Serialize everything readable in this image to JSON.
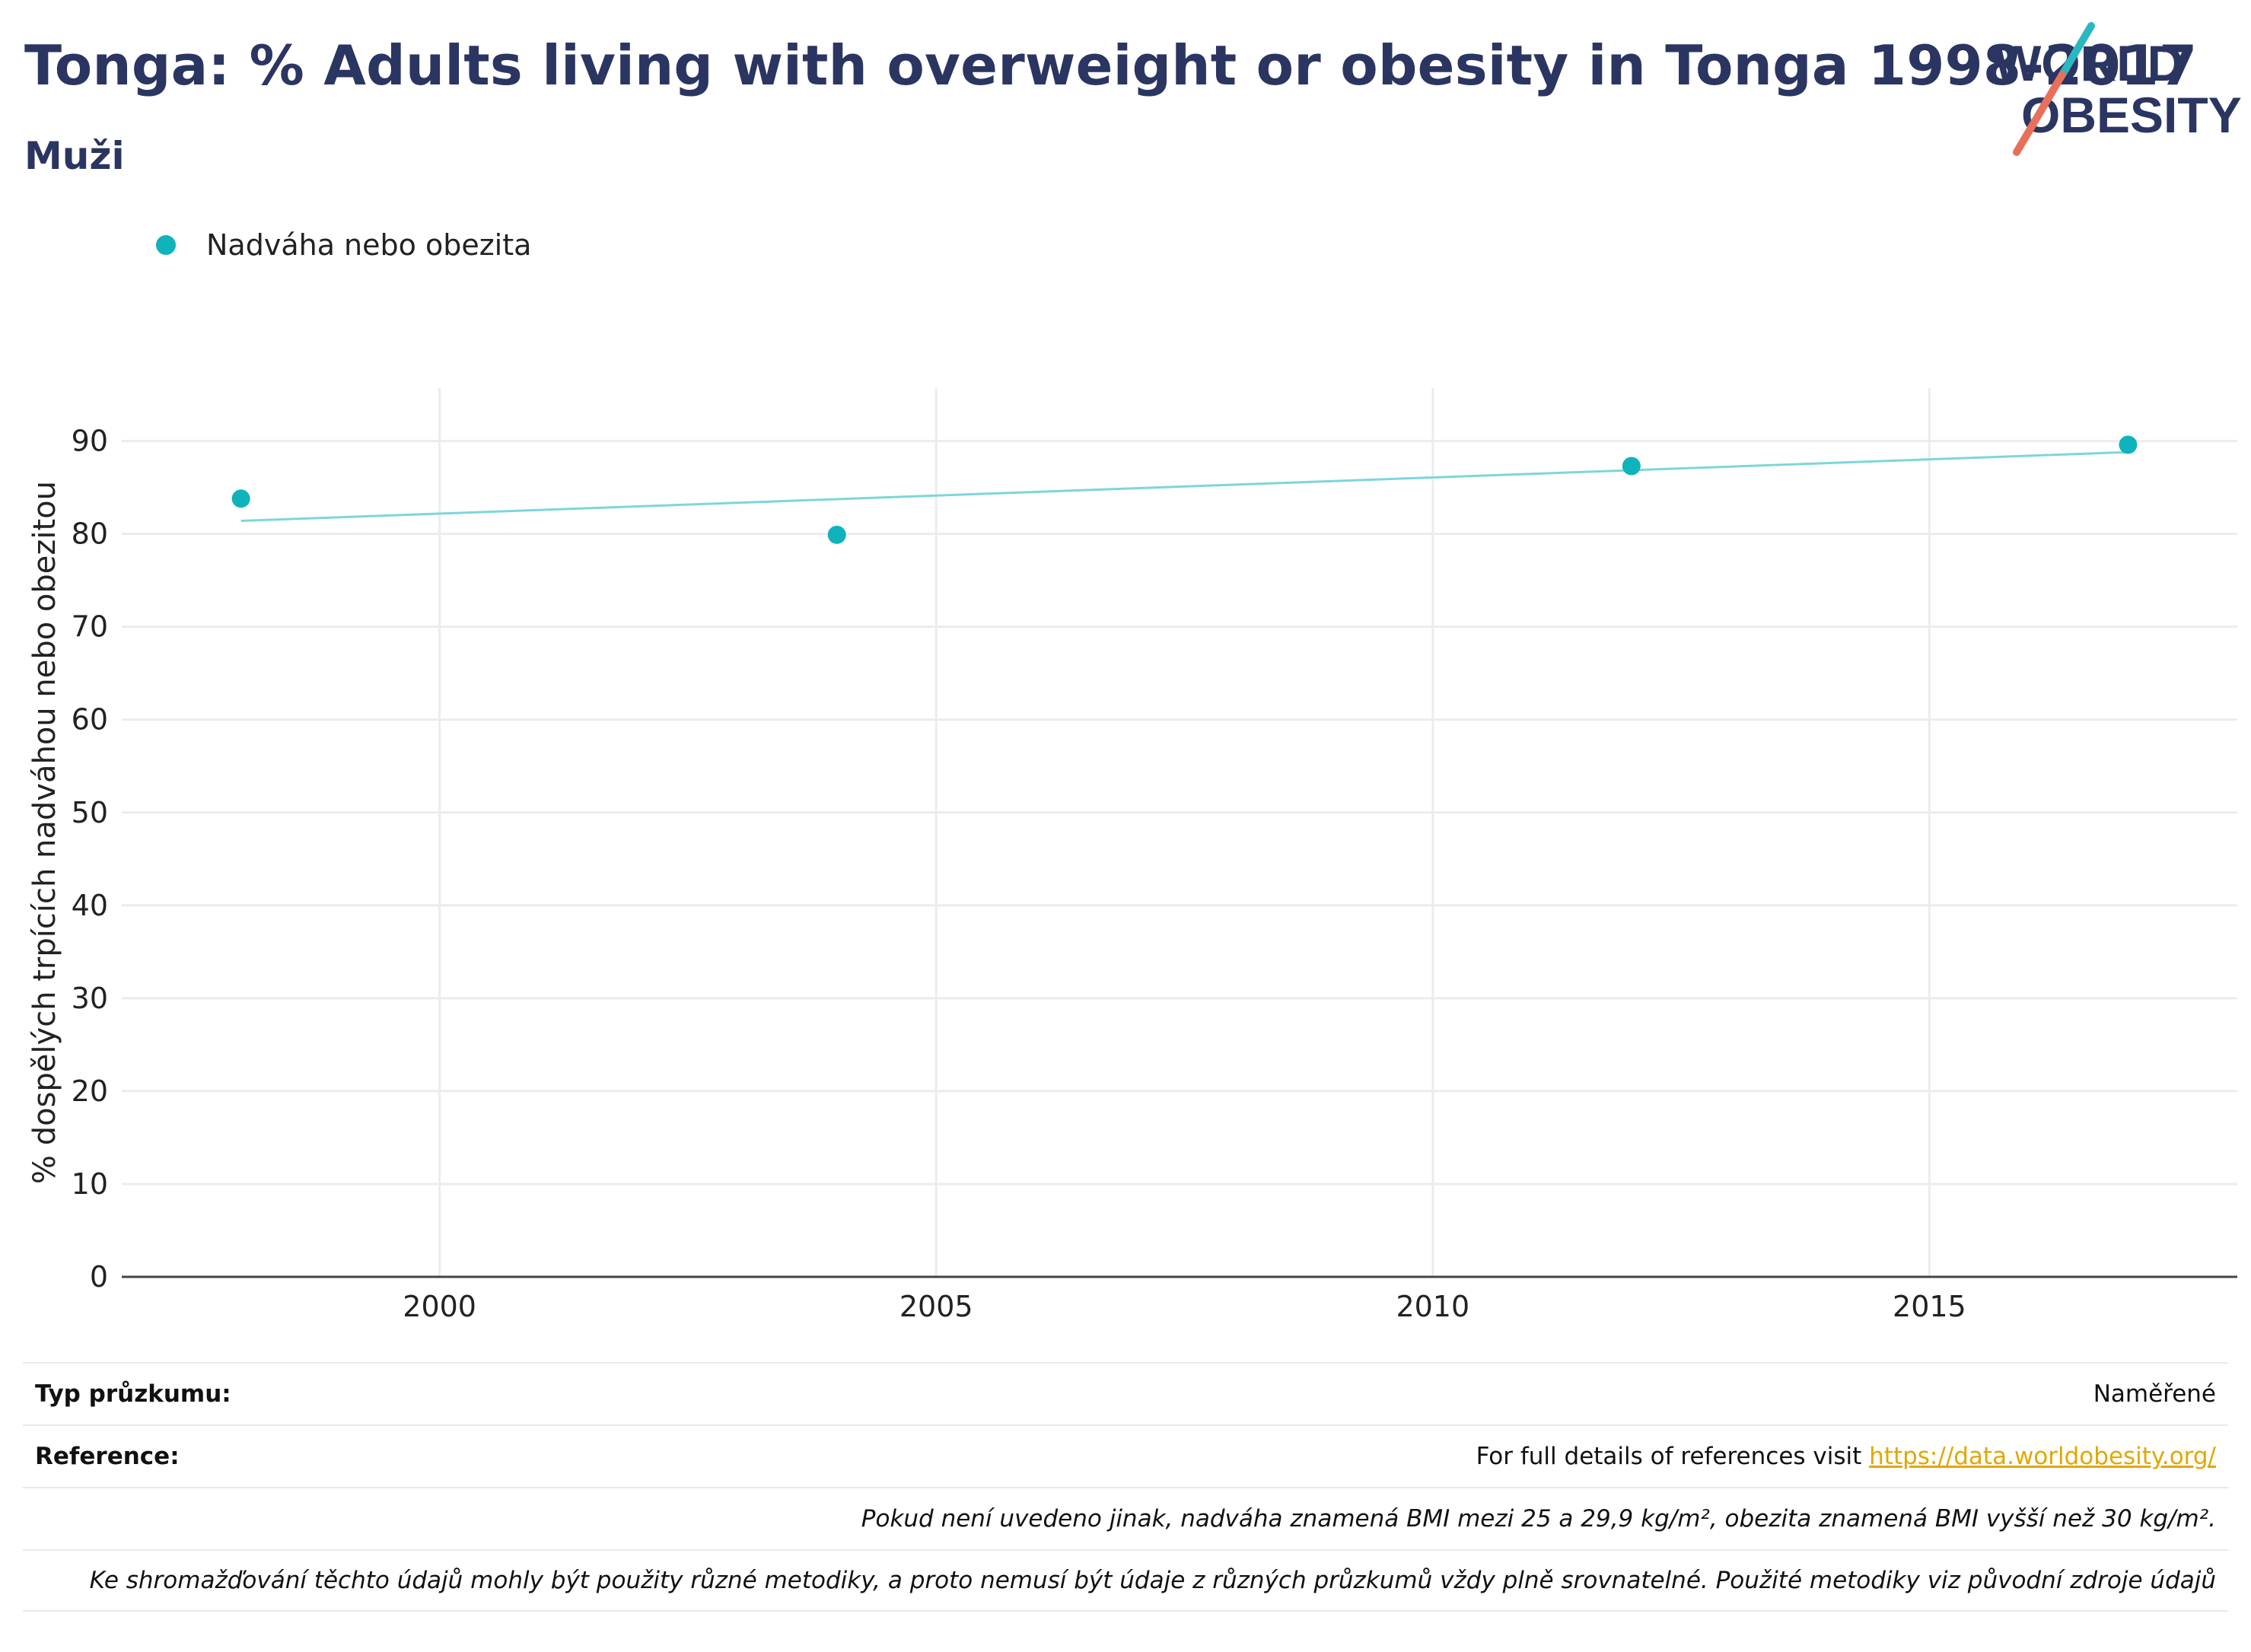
{
  "header": {
    "title": "Tonga: % Adults living with overweight or obesity in Tonga 1998-2017",
    "subtitle": "Muži",
    "logo_text_top": "WORLD",
    "logo_text_bottom": "OBESITY"
  },
  "legend": {
    "label": "Nadváha nebo obezita"
  },
  "chart_data": {
    "type": "scatter",
    "series": [
      {
        "name": "Nadváha nebo obezita",
        "x": [
          1998,
          2004,
          2012,
          2017
        ],
        "y": [
          83.8,
          79.9,
          87.3,
          89.6
        ]
      }
    ],
    "trend_line": {
      "x": [
        1998,
        2017
      ],
      "y": [
        81.4,
        88.8
      ]
    },
    "ylabel": "% dospělých trpících nadváhou nebo obezitou",
    "xlabel": "",
    "xlim": [
      1996.8,
      2018.1
    ],
    "ylim": [
      0,
      95.7
    ],
    "xticks": [
      2000,
      2005,
      2010,
      2015
    ],
    "yticks": [
      0,
      10,
      20,
      30,
      40,
      50,
      60,
      70,
      80,
      90
    ],
    "grid": true,
    "colors": {
      "points": "#0fb3bc",
      "trend": "#7dd6d9",
      "grid": "#ececf0",
      "axis": "#444444"
    }
  },
  "footer": {
    "survey_label": "Typ průzkumu:",
    "survey_value": "Naměřené",
    "reference_label": "Reference:",
    "reference_text": "For full details of references visit ",
    "reference_link": "https://data.worldobesity.org/",
    "note1": "Pokud není uvedeno jinak, nadváha znamená BMI mezi 25 a 29,9 kg/m², obezita znamená BMI vyšší než 30 kg/m².",
    "note2": "Ke shromažďování těchto údajů mohly být použity různé metodiky, a proto nemusí být údaje z různých průzkumů vždy plně srovnatelné. Použité metodiky viz původní zdroje údajů"
  }
}
